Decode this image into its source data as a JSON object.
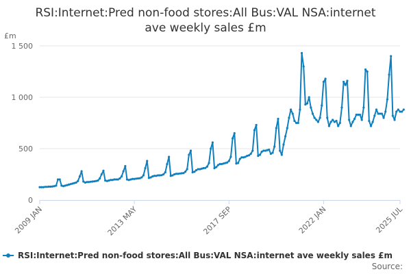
{
  "chart_data": {
    "type": "line",
    "title_lines": [
      "RSI:Internet:Pred non-food stores:All Bus:VAL NSA:internet",
      "ave weekly sales £m"
    ],
    "unit_label": "£m",
    "yticks": [
      "0",
      "500",
      "1 000",
      "1 500"
    ],
    "ytick_values": [
      0,
      500,
      1000,
      1500
    ],
    "ylim": [
      0,
      1500
    ],
    "xticks": [
      {
        "label": "2009 JAN",
        "date": "2009-01"
      },
      {
        "label": "2013 MAY",
        "date": "2013-05"
      },
      {
        "label": "2017 SEP",
        "date": "2017-09"
      },
      {
        "label": "2022 JAN",
        "date": "2022-01"
      },
      {
        "label": "2025 JUL",
        "date": "2025-07"
      }
    ],
    "xlim": [
      "2009-01",
      "2025-07"
    ],
    "grid": true,
    "legend_position": "bottom-left",
    "series": [
      {
        "name": "RSI:Internet:Pred non-food stores:All Bus:VAL NSA:internet ave weekly sales £m",
        "color": "#0f7fbe",
        "start": "2009-01",
        "values": [
          125,
          125,
          125,
          128,
          128,
          130,
          130,
          132,
          135,
          140,
          200,
          200,
          140,
          135,
          140,
          145,
          150,
          155,
          160,
          165,
          170,
          185,
          230,
          280,
          180,
          170,
          175,
          175,
          178,
          180,
          182,
          185,
          190,
          210,
          250,
          285,
          190,
          185,
          190,
          195,
          195,
          200,
          200,
          200,
          210,
          230,
          280,
          330,
          200,
          195,
          200,
          205,
          205,
          208,
          210,
          212,
          220,
          240,
          310,
          380,
          215,
          220,
          230,
          235,
          235,
          240,
          240,
          242,
          250,
          270,
          350,
          420,
          235,
          240,
          250,
          255,
          255,
          258,
          260,
          262,
          275,
          300,
          440,
          480,
          270,
          275,
          290,
          300,
          300,
          305,
          310,
          312,
          325,
          360,
          500,
          560,
          310,
          320,
          340,
          350,
          350,
          355,
          360,
          365,
          380,
          420,
          600,
          650,
          355,
          360,
          400,
          415,
          415,
          420,
          430,
          435,
          450,
          480,
          680,
          730,
          430,
          440,
          470,
          480,
          480,
          485,
          490,
          450,
          460,
          520,
          700,
          790,
          480,
          440,
          540,
          620,
          700,
          800,
          880,
          840,
          770,
          750,
          750,
          880,
          1430,
          1300,
          930,
          940,
          1000,
          900,
          840,
          800,
          780,
          760,
          800,
          920,
          1150,
          1180,
          800,
          720,
          760,
          780,
          760,
          770,
          720,
          750,
          900,
          1150,
          1120,
          1160,
          780,
          720,
          760,
          790,
          830,
          830,
          830,
          780,
          900,
          1270,
          1250,
          770,
          720,
          760,
          820,
          880,
          840,
          840,
          840,
          800,
          860,
          980,
          1220,
          1400,
          820,
          780,
          860,
          880,
          860,
          860,
          880
        ]
      }
    ]
  },
  "legend": {
    "label": "RSI:Internet:Pred non-food stores:All Bus:VAL NSA:internet ave weekly sales £m"
  },
  "source": {
    "label": "Source:"
  }
}
